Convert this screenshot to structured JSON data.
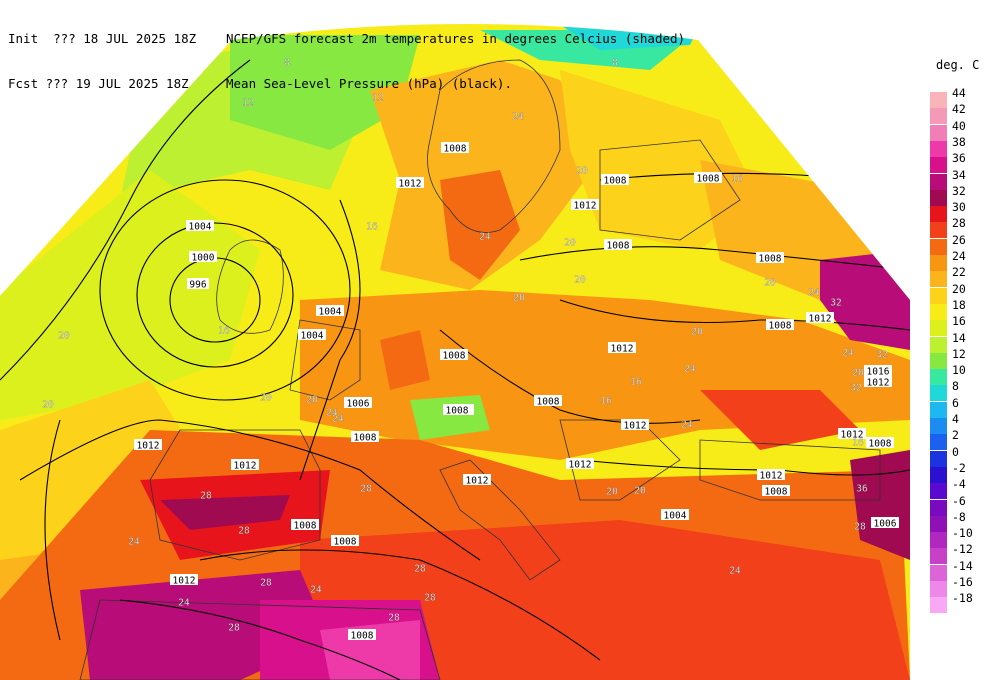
{
  "header": {
    "line1_left": "Init  ??? 18 JUL 2025 18Z",
    "line1_right": "NCEP/GFS forecast 2m temperatures in degrees Celcius (shaded)",
    "line2_left": "Fcst ??? 19 JUL 2025 18Z",
    "line2_right": "Mean Sea-Level Pressure (hPa) (black)."
  },
  "legend": {
    "title": "deg. C",
    "items": [
      {
        "label": "44",
        "color": "#f8b4b8"
      },
      {
        "label": "42",
        "color": "#f49ab8"
      },
      {
        "label": "40",
        "color": "#f27eb8"
      },
      {
        "label": "38",
        "color": "#ee3aa8"
      },
      {
        "label": "36",
        "color": "#d8108c"
      },
      {
        "label": "34",
        "color": "#b80c78"
      },
      {
        "label": "32",
        "color": "#a00a50"
      },
      {
        "label": "30",
        "color": "#e8141c"
      },
      {
        "label": "28",
        "color": "#f2401a"
      },
      {
        "label": "26",
        "color": "#f46a12"
      },
      {
        "label": "24",
        "color": "#f89614"
      },
      {
        "label": "22",
        "color": "#fbb41c"
      },
      {
        "label": "20",
        "color": "#fdd21a"
      },
      {
        "label": "18",
        "color": "#f8ec18"
      },
      {
        "label": "16",
        "color": "#dcf01e"
      },
      {
        "label": "14",
        "color": "#bcf030"
      },
      {
        "label": "12",
        "color": "#86e840"
      },
      {
        "label": "10",
        "color": "#38e8a0"
      },
      {
        "label": "8",
        "color": "#20d8d8"
      },
      {
        "label": "6",
        "color": "#1eb8f0"
      },
      {
        "label": "4",
        "color": "#1c8cf0"
      },
      {
        "label": "2",
        "color": "#1c60f0"
      },
      {
        "label": "0",
        "color": "#1c34e0"
      },
      {
        "label": "-2",
        "color": "#2a10d0"
      },
      {
        "label": "-4",
        "color": "#5a0ad0"
      },
      {
        "label": "-6",
        "color": "#7a0ac0"
      },
      {
        "label": "-8",
        "color": "#9010b8"
      },
      {
        "label": "-10",
        "color": "#b028c0"
      },
      {
        "label": "-12",
        "color": "#c840c8"
      },
      {
        "label": "-14",
        "color": "#dc64d8"
      },
      {
        "label": "-16",
        "color": "#ee88e8"
      },
      {
        "label": "-18",
        "color": "#f8a8f4"
      }
    ]
  },
  "isobar_labels": [
    "1004",
    "1000",
    "996",
    "1004",
    "1004",
    "1008",
    "1008",
    "1012",
    "1012",
    "1016",
    "1012",
    "1008",
    "1008",
    "1008",
    "1012",
    "1012",
    "1012",
    "1012",
    "1012",
    "1008",
    "1008",
    "1006",
    "1008",
    "1008",
    "1008",
    "1012",
    "1012",
    "1008",
    "1012",
    "1016",
    "1012",
    "1008",
    "1006",
    "1004",
    "1008",
    "1012",
    "1008",
    "1008"
  ],
  "temp_labels": [
    "8",
    "12",
    "12",
    "8",
    "16",
    "16",
    "20",
    "20",
    "24",
    "24",
    "20",
    "20",
    "20",
    "16",
    "20",
    "24",
    "24",
    "20",
    "20",
    "24",
    "28",
    "28",
    "24",
    "20",
    "20",
    "16",
    "24",
    "24",
    "20",
    "24",
    "28",
    "24",
    "28",
    "24",
    "28",
    "28",
    "24",
    "28",
    "28",
    "32",
    "36",
    "32",
    "32",
    "28",
    "20",
    "20",
    "16",
    "16"
  ]
}
